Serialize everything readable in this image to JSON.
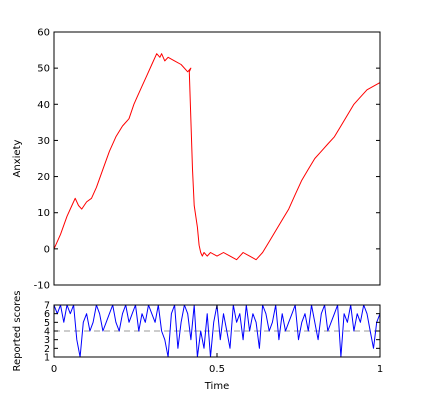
{
  "chart_data": [
    {
      "type": "line",
      "ylabel": "Anxiety",
      "xlabel": "",
      "xlim": [
        0,
        1
      ],
      "ylim": [
        -10,
        60
      ],
      "yticks": [
        -10,
        0,
        10,
        20,
        30,
        40,
        50,
        60
      ],
      "xticks": [],
      "grid": false,
      "series": [
        {
          "color": "#ff0000",
          "x": [
            0.0,
            0.02,
            0.04,
            0.055,
            0.065,
            0.075,
            0.085,
            0.1,
            0.115,
            0.13,
            0.15,
            0.17,
            0.19,
            0.21,
            0.23,
            0.245,
            0.255,
            0.27,
            0.285,
            0.3,
            0.315,
            0.325,
            0.33,
            0.34,
            0.35,
            0.37,
            0.39,
            0.41,
            0.42,
            0.415,
            0.425,
            0.43,
            0.44,
            0.445,
            0.45,
            0.455,
            0.46,
            0.47,
            0.48,
            0.5,
            0.52,
            0.54,
            0.56,
            0.58,
            0.6,
            0.62,
            0.64,
            0.66,
            0.68,
            0.7,
            0.72,
            0.74,
            0.76,
            0.78,
            0.8,
            0.82,
            0.84,
            0.86,
            0.88,
            0.9,
            0.92,
            0.94,
            0.96,
            0.98,
            1.0
          ],
          "y": [
            0,
            4,
            9,
            12,
            14,
            12,
            11,
            13,
            14,
            17,
            22,
            27,
            31,
            34,
            36,
            40,
            42,
            45,
            48,
            51,
            54,
            53,
            54,
            52,
            53,
            52,
            51,
            49,
            50,
            49,
            22,
            12,
            6,
            1,
            -1,
            -2,
            -1,
            -2,
            -1,
            -2,
            -1,
            -2,
            -3,
            -1,
            -2,
            -3,
            -1,
            2,
            5,
            8,
            11,
            15,
            19,
            22,
            25,
            27,
            29,
            31,
            34,
            37,
            40,
            42,
            44,
            45,
            46
          ]
        }
      ]
    },
    {
      "type": "line",
      "ylabel": "Reported scores",
      "xlabel": "Time",
      "xlim": [
        0,
        1
      ],
      "ylim": [
        1,
        7
      ],
      "yticks": [
        1,
        2,
        3,
        4,
        5,
        6,
        7
      ],
      "xticks": [
        0,
        0.5,
        1
      ],
      "xtick_labels": [
        "0",
        "0.5",
        "1"
      ],
      "reference_line": {
        "y": 4,
        "color": "#999999",
        "style": "dashed"
      },
      "grid": false,
      "series": [
        {
          "color": "#0000ff",
          "x": [
            0.0,
            0.01,
            0.02,
            0.03,
            0.04,
            0.05,
            0.06,
            0.07,
            0.08,
            0.09,
            0.1,
            0.11,
            0.12,
            0.13,
            0.14,
            0.15,
            0.16,
            0.17,
            0.18,
            0.19,
            0.2,
            0.21,
            0.22,
            0.23,
            0.24,
            0.25,
            0.26,
            0.27,
            0.28,
            0.29,
            0.3,
            0.31,
            0.32,
            0.33,
            0.34,
            0.35,
            0.36,
            0.37,
            0.38,
            0.39,
            0.4,
            0.41,
            0.42,
            0.43,
            0.44,
            0.45,
            0.46,
            0.47,
            0.48,
            0.49,
            0.5,
            0.51,
            0.52,
            0.53,
            0.54,
            0.55,
            0.56,
            0.57,
            0.58,
            0.59,
            0.6,
            0.61,
            0.62,
            0.63,
            0.64,
            0.65,
            0.66,
            0.67,
            0.68,
            0.69,
            0.7,
            0.71,
            0.72,
            0.73,
            0.74,
            0.75,
            0.76,
            0.77,
            0.78,
            0.79,
            0.8,
            0.81,
            0.82,
            0.83,
            0.84,
            0.85,
            0.86,
            0.87,
            0.88,
            0.89,
            0.9,
            0.91,
            0.92,
            0.93,
            0.94,
            0.95,
            0.96,
            0.97,
            0.98,
            0.99,
            1.0
          ],
          "y": [
            7,
            6,
            7,
            5,
            7,
            6,
            7,
            3,
            1,
            5,
            6,
            4,
            5,
            7,
            6,
            4,
            5,
            6,
            7,
            5,
            4,
            6,
            7,
            5,
            6,
            7,
            4,
            6,
            5,
            7,
            6,
            5,
            7,
            4,
            3,
            1,
            6,
            7,
            2,
            5,
            7,
            6,
            3,
            7,
            1,
            4,
            2,
            6,
            1,
            5,
            7,
            3,
            6,
            4,
            2,
            7,
            5,
            6,
            3,
            7,
            4,
            6,
            5,
            2,
            7,
            6,
            4,
            5,
            7,
            3,
            6,
            4,
            5,
            6,
            7,
            3,
            5,
            6,
            4,
            7,
            5,
            3,
            6,
            7,
            4,
            5,
            6,
            7,
            1,
            6,
            5,
            7,
            4,
            6,
            5,
            7,
            6,
            4,
            2,
            5,
            6
          ]
        }
      ]
    }
  ]
}
